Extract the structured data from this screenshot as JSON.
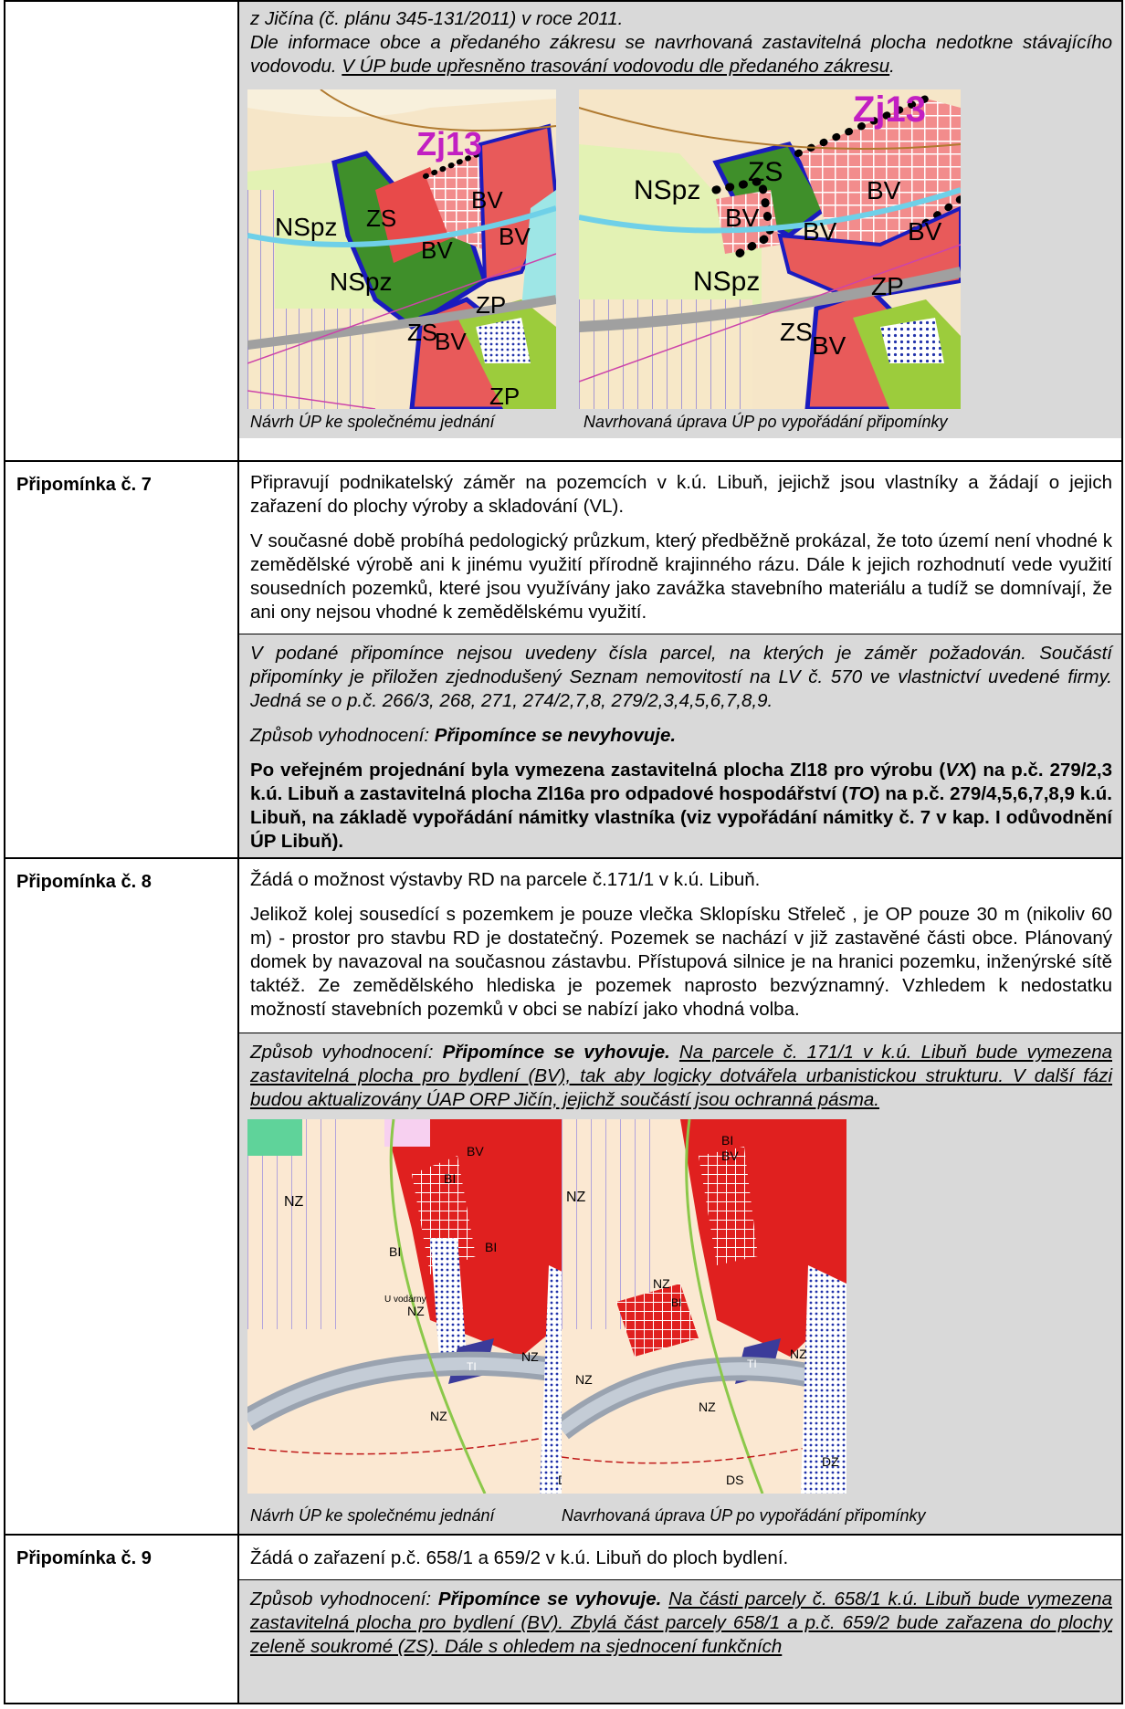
{
  "row6": {
    "lines": [
      "z Jičína (č. plánu 345-131/2011) v roce 2011.",
      "Dle informace obce a předaného zákresu se navrhovaná zastavitelná plocha nedotkne stávajícího vodovodu.",
      "V ÚP bude upřesněno trasování vodovodu dle předaného zákresu"
    ],
    "map_left_labels": {
      "zone": "Zj13",
      "zs": "ZS",
      "nspz1": "NSpz",
      "nspz2": "NSpz",
      "bv1": "BV",
      "bv2": "BV",
      "bv3": "BV",
      "bv4": "BV",
      "zp1": "ZP",
      "zp2": "ZP",
      "zs2": "ZS"
    },
    "map_right_labels": {
      "zone": "Zj13",
      "zs": "ZS",
      "nspz1": "NSpz",
      "nspz2": "NSpz",
      "bv1": "BV",
      "bv2": "BV",
      "bv3": "BV",
      "bv4": "BV",
      "bv5": "BV",
      "zp1": "ZP",
      "zs2": "ZS"
    },
    "caption_left": "Návrh ÚP ke společnému jednání",
    "caption_right": "Navrhovaná úprava ÚP po vypořádání připomínky"
  },
  "row7": {
    "label": "Připomínka č. 7",
    "p1": "Připravují podnikatelský záměr na pozemcích v k.ú. Libuň, jejichž jsou vlastníky a žádají o jejich zařazení do plochy výroby a skladování (VL).",
    "p2": "V současné době probíhá pedologický průzkum, který předběžně prokázal, že toto území není vhodné k zemědělské výrobě ani k jinému využití přírodně krajinného rázu. Dále k jejich rozhodnutí vede využití sousedních pozemků, které jsou využívány jako zavážka stavebního materiálu a tudíž se domnívají, že ani ony nejsou vhodné k zemědělskému využití.",
    "g1": "V podané připomínce nejsou uvedeny čísla parcel, na kterých je záměr požadován. Součástí připomínky je přiložen zjednodušený Seznam nemovitostí na LV č. 570 ve vlastnictví uvedené firmy. Jedná se o p.č. 266/3, 268, 271, 274/2,7,8, 279/2,3,4,5,6,7,8,9.",
    "g2_prefix": "Způsob vyhodnocení: ",
    "g2_bold": "Připomínce se nevyhovuje.",
    "g3_a": "Po veřejném projednání byla vymezena zastavitelná plocha Zl18 pro výrobu (",
    "g3_b": "VX",
    "g3_c": ") na p.č. 279/2,3 k.ú. Libuň a zastavitelná plocha Zl16a pro odpadové hospodářství (",
    "g3_d": "TO",
    "g3_e": ") na p.č. 279/4,5,6,7,8,9 k.ú. Libuň, na základě vypořádání námitky vlastníka (viz vypořádání námitky č. 7 v kap. I odůvodnění ÚP Libuň)."
  },
  "row8": {
    "label": "Připomínka č. 8",
    "p1": "Žádá o možnost výstavby RD na parcele č.171/1 v k.ú. Libuň.",
    "p2": "Jelikož kolej sousedící s pozemkem je pouze vlečka Sklopísku Střeleč , je OP pouze 30 m (nikoliv 60 m) - prostor pro stavbu RD je dostatečný. Pozemek se nachází v již zastavěné části obce. Plánovaný domek by navazoval na současnou zástavbu. Přístupová silnice je na hranici pozemku, inženýrské sítě taktéž. Ze zemědělského hlediska je pozemek naprosto bezvýznamný. Vzhledem k nedostatku možností stavebních pozemků v obci se nabízí jako vhodná volba.",
    "g_prefix": "Způsob vyhodnocení: ",
    "g_bold": "Připomínce se vyhovuje.",
    "g_under": "Na parcele č. 171/1 v k.ú. Libuň bude vymezena zastavitelná plocha pro bydlení (BV), tak aby logicky dotvářela urbanistickou strukturu. V další fázi budou aktualizovány ÚAP ORP Jičín, jejichž součástí jsou ochranná pásma.",
    "map_left_labels": {
      "nz1": "NZ",
      "nz2": "NZ",
      "nz3": "NZ",
      "nz4": "NZ",
      "bi1": "BI",
      "bi2": "BI",
      "bi3": "BI",
      "bv": "BV",
      "ti": "TI",
      "dz": "DZ",
      "uvod": "U vodárny"
    },
    "map_right_labels": {
      "nz1": "NZ",
      "nz2": "NZ",
      "nz3": "NZ",
      "nz4": "NZ",
      "nz5": "NZ",
      "bi1": "BI",
      "bv": "BV",
      "ti": "TI",
      "dz": "DZ",
      "ds": "DS",
      "bi2": "BI"
    },
    "caption_left": "Návrh ÚP ke společnému jednání",
    "caption_right": "Navrhovaná úprava ÚP po vypořádání připomínky"
  },
  "row9": {
    "label": "Připomínka č. 9",
    "p1": "Žádá o zařazení p.č. 658/1 a 659/2 v k.ú. Libuň do ploch bydlení.",
    "g_prefix": "Způsob vyhodnocení: ",
    "g_bold": "Připomínce se vyhovuje.",
    "g_under": "Na části parcely č. 658/1 k.ú. Libuň bude vymezena zastavitelná plocha pro bydlení (BV). Zbylá část parcely 658/1 a p.č. 659/2 bude zařazena do plochy zeleně soukromé (ZS). Dále s ohledem na sjednocení funkčních"
  }
}
